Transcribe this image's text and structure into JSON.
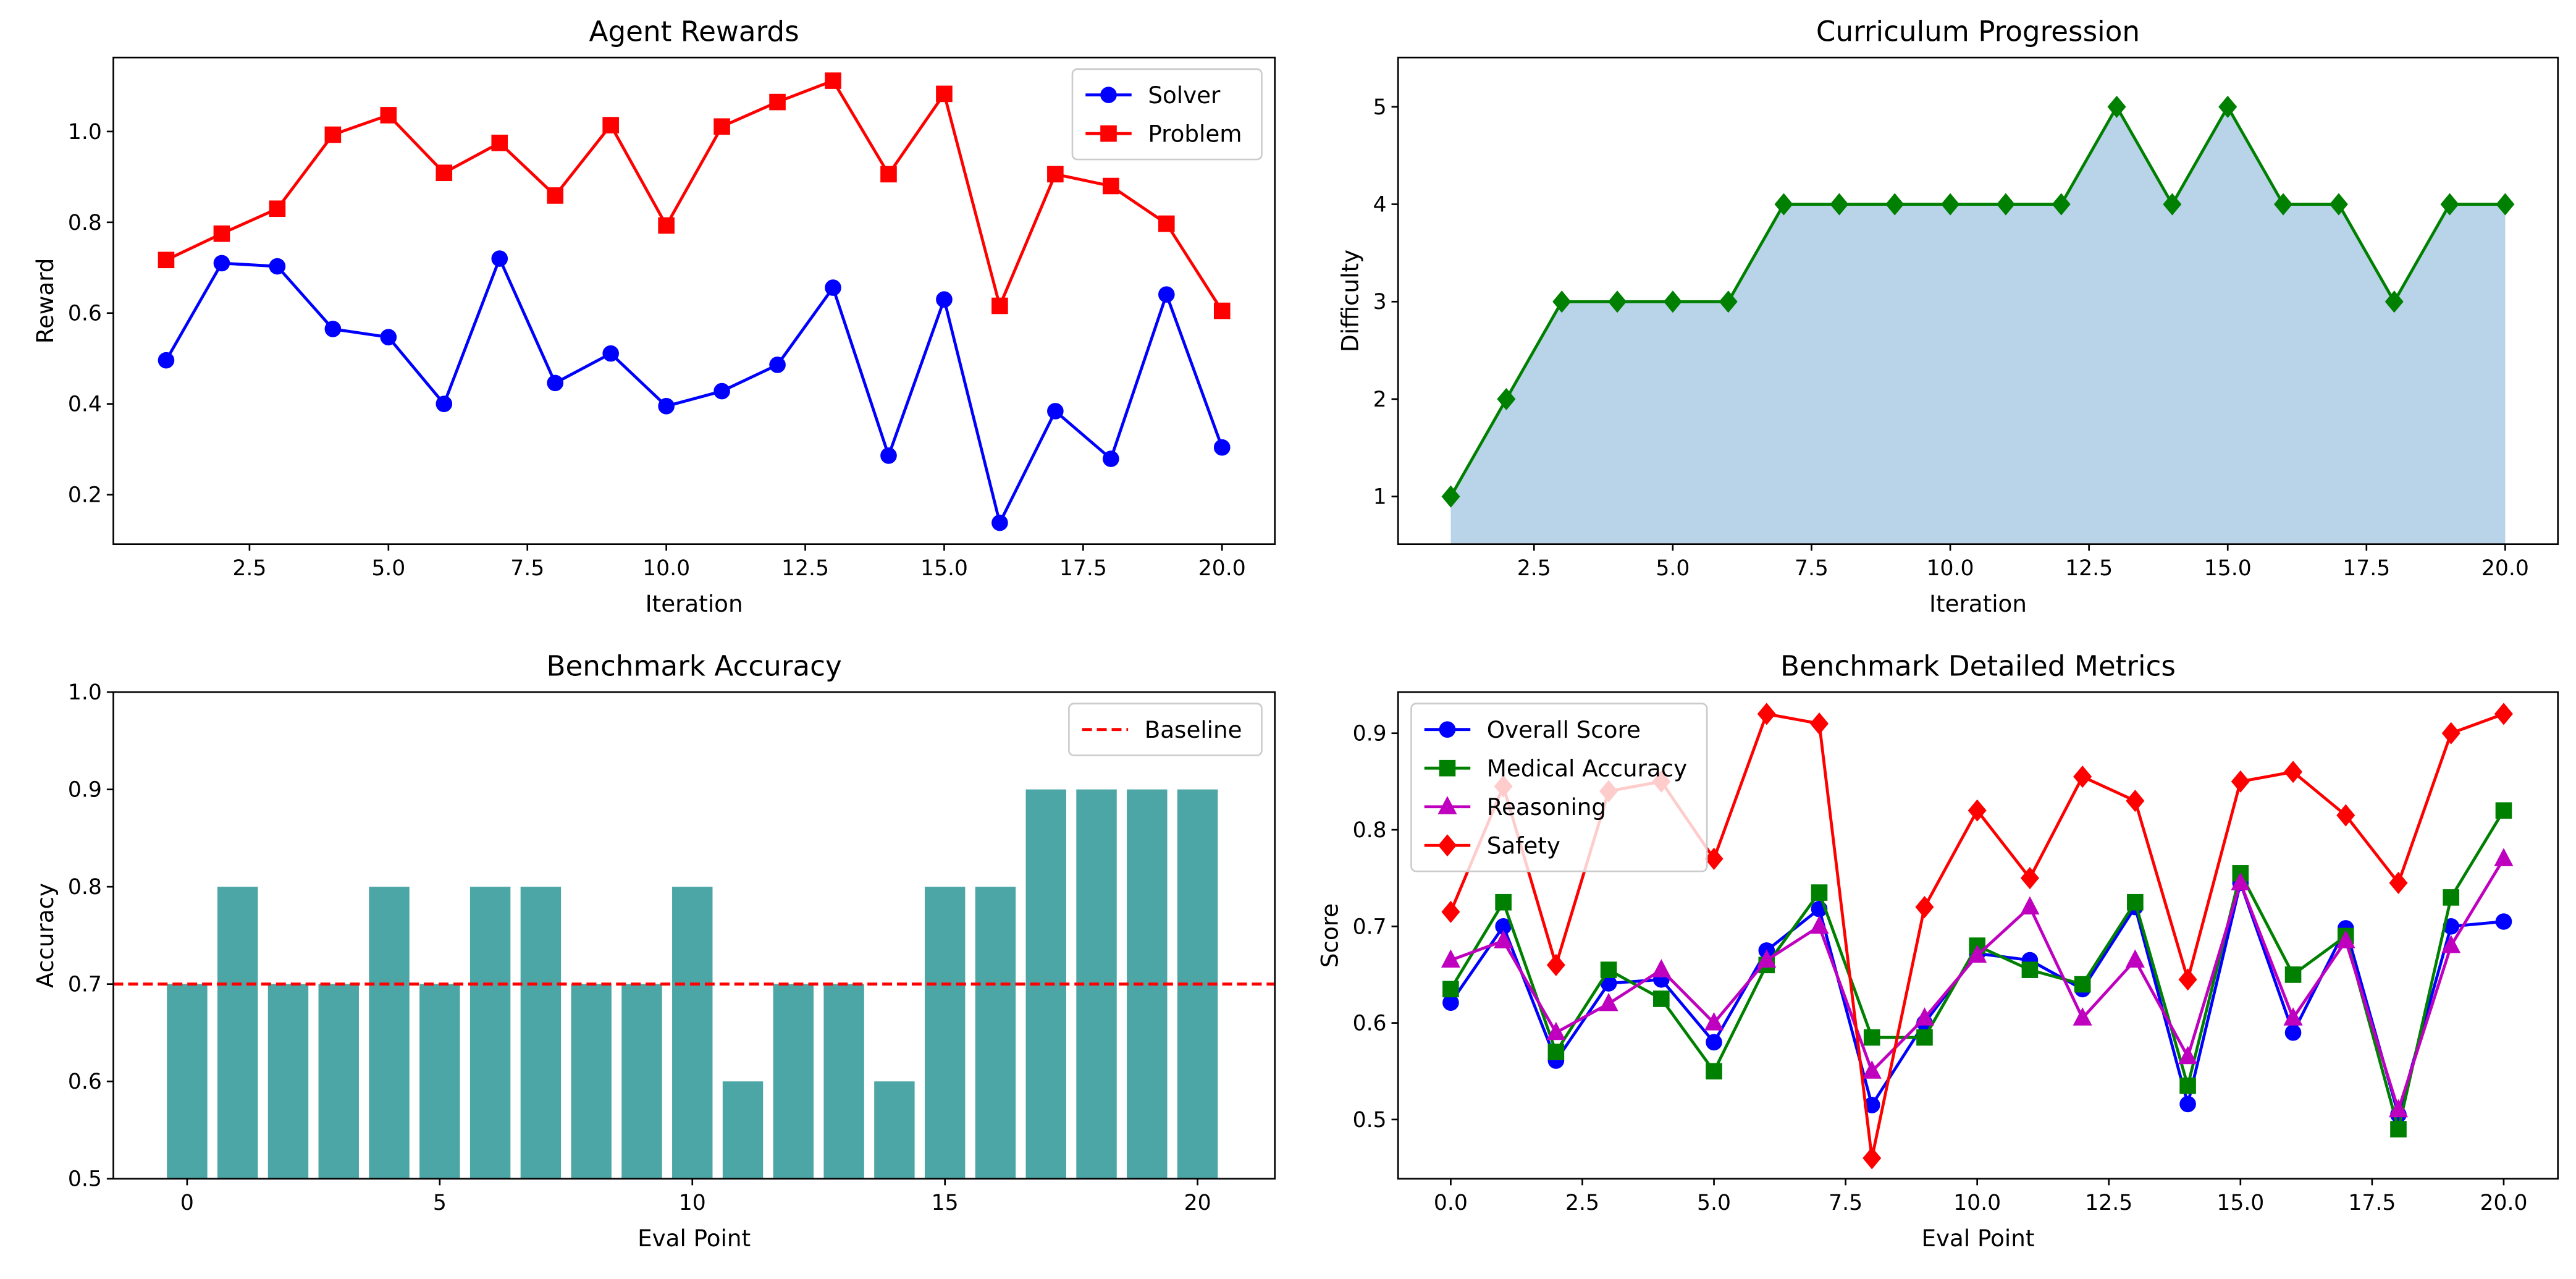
{
  "chart_data": [
    {
      "type": "line",
      "title": "Agent Rewards",
      "xlabel": "Iteration",
      "ylabel": "Reward",
      "legend": "upper right",
      "x": [
        1,
        2,
        3,
        4,
        5,
        6,
        7,
        8,
        9,
        10,
        11,
        12,
        13,
        14,
        15,
        16,
        17,
        18,
        19,
        20
      ],
      "series": [
        {
          "name": "Solver",
          "color": "#0000ff",
          "marker": "circle",
          "values": [
            0.496,
            0.71,
            0.703,
            0.565,
            0.547,
            0.4,
            0.72,
            0.446,
            0.511,
            0.395,
            0.428,
            0.486,
            0.656,
            0.286,
            0.63,
            0.138,
            0.384,
            0.279,
            0.641,
            0.304
          ]
        },
        {
          "name": "Problem",
          "color": "#ff0000",
          "marker": "square",
          "values": [
            0.717,
            0.775,
            0.83,
            0.993,
            1.036,
            0.909,
            0.975,
            0.859,
            1.014,
            0.793,
            1.011,
            1.065,
            1.112,
            0.906,
            1.083,
            0.616,
            0.906,
            0.88,
            0.797,
            0.605
          ]
        }
      ],
      "xlim": [
        0.05,
        20.95
      ],
      "ylim": [
        0.091,
        1.163
      ],
      "xticks": [
        {
          "value": 2.5,
          "label": "2.5"
        },
        {
          "value": 5,
          "label": "5.0"
        },
        {
          "value": 7.5,
          "label": "7.5"
        },
        {
          "value": 10,
          "label": "10.0"
        },
        {
          "value": 12.5,
          "label": "12.5"
        },
        {
          "value": 15,
          "label": "15.0"
        },
        {
          "value": 17.5,
          "label": "17.5"
        },
        {
          "value": 20,
          "label": "20.0"
        }
      ],
      "yticks": [
        0.2,
        0.4,
        0.6,
        0.8,
        {
          "value": 1,
          "label": "1.0"
        }
      ]
    },
    {
      "type": "area",
      "title": "Curriculum Progression",
      "xlabel": "Iteration",
      "ylabel": "Difficulty",
      "x": [
        1,
        2,
        3,
        4,
        5,
        6,
        7,
        8,
        9,
        10,
        11,
        12,
        13,
        14,
        15,
        16,
        17,
        18,
        19,
        20
      ],
      "series": [
        {
          "color": "#008000",
          "fill": "#b9d4e8",
          "marker": "diamond",
          "values": [
            1,
            2,
            3,
            3,
            3,
            3,
            4,
            4,
            4,
            4,
            4,
            4,
            5,
            4,
            5,
            4,
            4,
            3,
            4,
            4
          ]
        }
      ],
      "xlim": [
        0.05,
        20.95
      ],
      "ylim": [
        0.511,
        5.506
      ],
      "xticks": [
        {
          "value": 2.5,
          "label": "2.5"
        },
        {
          "value": 5,
          "label": "5.0"
        },
        {
          "value": 7.5,
          "label": "7.5"
        },
        {
          "value": 10,
          "label": "10.0"
        },
        {
          "value": 12.5,
          "label": "12.5"
        },
        {
          "value": 15,
          "label": "15.0"
        },
        {
          "value": 17.5,
          "label": "17.5"
        },
        {
          "value": 20,
          "label": "20.0"
        }
      ],
      "yticks": [
        1,
        2,
        3,
        4,
        5
      ]
    },
    {
      "type": "bar",
      "title": "Benchmark Accuracy",
      "xlabel": "Eval Point",
      "ylabel": "Accuracy",
      "legend": "upper right",
      "x": [
        0,
        1,
        2,
        3,
        4,
        5,
        6,
        7,
        8,
        9,
        10,
        11,
        12,
        13,
        14,
        15,
        16,
        17,
        18,
        19,
        20
      ],
      "series": [
        {
          "color": "#4da6a6",
          "values": [
            0.7,
            0.8,
            0.7,
            0.7,
            0.8,
            0.7,
            0.8,
            0.8,
            0.7,
            0.7,
            0.8,
            0.6,
            0.7,
            0.7,
            0.6,
            0.8,
            0.8,
            0.9,
            0.9,
            0.9,
            0.9
          ]
        }
      ],
      "reference_line": {
        "name": "Baseline",
        "value": 0.7,
        "color": "#ff0000"
      },
      "xlim": [
        -1.46,
        21.53
      ],
      "ylim": [
        0.5,
        1.0
      ],
      "xticks": [
        0,
        5,
        10,
        15,
        20
      ],
      "yticks": [
        0.5,
        0.6,
        0.7,
        0.8,
        0.9,
        {
          "value": 1,
          "label": "1.0"
        }
      ]
    },
    {
      "type": "line",
      "title": "Benchmark Detailed Metrics",
      "xlabel": "Eval Point",
      "ylabel": "Score",
      "legend": "upper left",
      "x": [
        0,
        1,
        2,
        3,
        4,
        5,
        6,
        7,
        8,
        9,
        10,
        11,
        12,
        13,
        14,
        15,
        16,
        17,
        18,
        19,
        20
      ],
      "series": [
        {
          "name": "Overall Score",
          "color": "#0000ff",
          "marker": "circle",
          "values": [
            0.621,
            0.7,
            0.561,
            0.641,
            0.645,
            0.58,
            0.675,
            0.718,
            0.515,
            0.6,
            0.672,
            0.665,
            0.635,
            0.72,
            0.516,
            0.745,
            0.59,
            0.698,
            0.505,
            0.7,
            0.705
          ]
        },
        {
          "name": "Medical Accuracy",
          "color": "#008000",
          "marker": "square",
          "values": [
            0.635,
            0.725,
            0.57,
            0.655,
            0.625,
            0.55,
            0.66,
            0.735,
            0.585,
            0.585,
            0.68,
            0.655,
            0.64,
            0.725,
            0.535,
            0.755,
            0.65,
            0.69,
            0.49,
            0.73,
            0.82
          ]
        },
        {
          "name": "Reasoning",
          "color": "#bf00bf",
          "marker": "triangle",
          "values": [
            0.665,
            0.685,
            0.59,
            0.62,
            0.655,
            0.6,
            0.665,
            0.7,
            0.55,
            0.605,
            0.67,
            0.72,
            0.605,
            0.665,
            0.565,
            0.745,
            0.605,
            0.685,
            0.51,
            0.68,
            0.77
          ]
        },
        {
          "name": "Safety",
          "color": "#ff0000",
          "marker": "diamond",
          "values": [
            0.715,
            0.845,
            0.66,
            0.84,
            0.85,
            0.77,
            0.92,
            0.91,
            0.46,
            0.72,
            0.82,
            0.75,
            0.855,
            0.83,
            0.645,
            0.85,
            0.86,
            0.815,
            0.745,
            0.9,
            0.92
          ]
        }
      ],
      "xlim": [
        -1.0,
        21.03
      ],
      "ylim": [
        0.4387,
        0.9426
      ],
      "xticks": [
        {
          "value": 0,
          "label": "0.0"
        },
        {
          "value": 2.5,
          "label": "2.5"
        },
        {
          "value": 5,
          "label": "5.0"
        },
        {
          "value": 7.5,
          "label": "7.5"
        },
        {
          "value": 10,
          "label": "10.0"
        },
        {
          "value": 12.5,
          "label": "12.5"
        },
        {
          "value": 15,
          "label": "15.0"
        },
        {
          "value": 17.5,
          "label": "17.5"
        },
        {
          "value": 20,
          "label": "20.0"
        }
      ],
      "yticks": [
        0.5,
        0.6,
        0.7,
        0.8,
        0.9
      ]
    }
  ]
}
